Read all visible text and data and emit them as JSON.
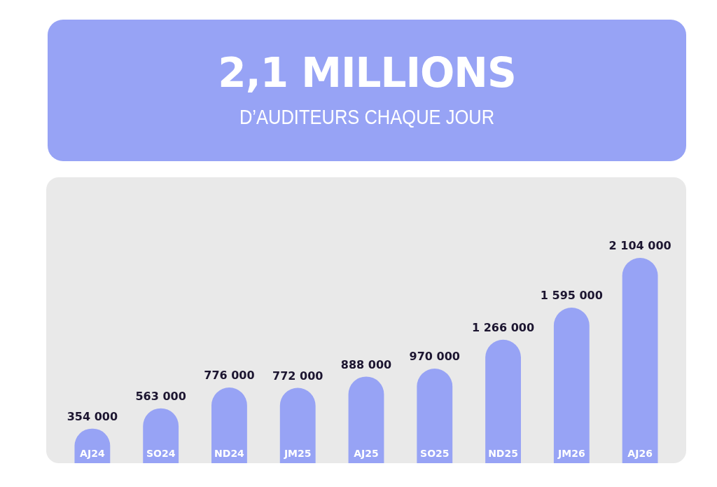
{
  "chart_data": {
    "type": "bar",
    "title": "2,1 MILLIONS",
    "subtitle": "D’AUDITEURS CHAQUE JOUR",
    "categories": [
      "AJ24",
      "SO24",
      "ND24",
      "JM25",
      "AJ25",
      "SO25",
      "ND25",
      "JM26",
      "AJ26"
    ],
    "values": [
      354000,
      563000,
      776000,
      772000,
      888000,
      970000,
      1266000,
      1595000,
      2104000
    ],
    "color": "#97a3f5",
    "data_labels": true
  }
}
